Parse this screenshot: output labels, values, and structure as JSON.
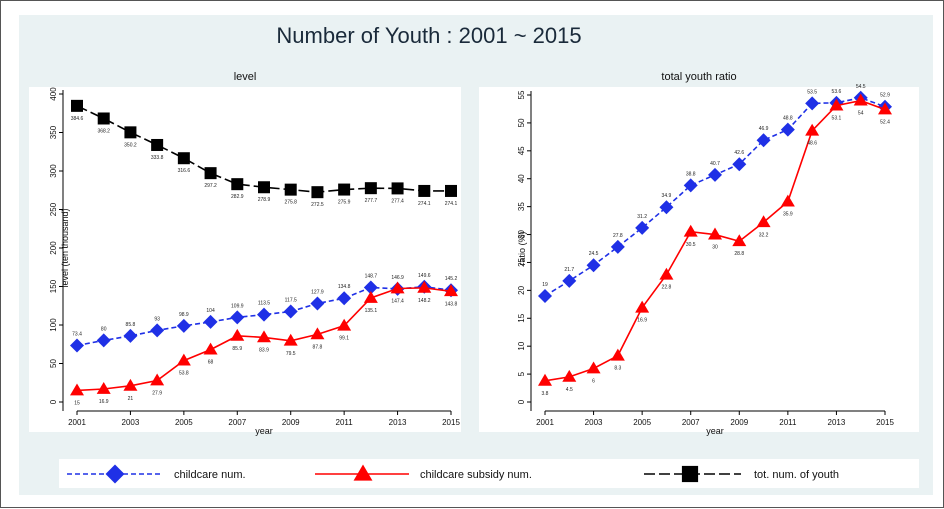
{
  "colors": {
    "childcare": "#1f30e6",
    "subsidy": "#ff0000",
    "youth": "#000000",
    "figure_bg": "#eaf2f3",
    "panel_bg": "#ffffff"
  },
  "chart_data": [
    {
      "type": "line",
      "title": "Number of Youth : 2001 ~ 2015",
      "subtitle": "level",
      "xlabel": "year",
      "ylabel": "level (ten thousand)",
      "x": [
        2001,
        2002,
        2003,
        2004,
        2005,
        2006,
        2007,
        2008,
        2009,
        2010,
        2011,
        2012,
        2013,
        2014,
        2015
      ],
      "xticks": [
        2001,
        2003,
        2005,
        2007,
        2009,
        2011,
        2013,
        2015
      ],
      "ylim": [
        0,
        400
      ],
      "yticks": [
        0,
        50,
        100,
        150,
        200,
        250,
        300,
        350,
        400
      ],
      "grid": false,
      "series": [
        {
          "name": "childcare num.",
          "marker": "diamond",
          "line": "dashed",
          "color": "#1f30e6",
          "values": [
            73.4,
            80,
            85.8,
            93,
            98.9,
            104,
            109.9,
            113.5,
            117.5,
            127.9,
            134.8,
            148.7,
            146.9,
            149.6,
            145.2
          ],
          "labels": [
            "73.4",
            "80",
            "85.8",
            "93",
            "98.9",
            "104",
            "109.9",
            "113.5",
            "117.5",
            "127.9",
            "134.8",
            "148.7",
            "146.9",
            "149.6",
            "145.2"
          ],
          "label_pos": "above"
        },
        {
          "name": "childcare subsidy num.",
          "marker": "triangle",
          "line": "solid",
          "color": "#ff0000",
          "values": [
            15,
            16.9,
            21,
            27.9,
            53.8,
            68,
            85.9,
            83.9,
            79.5,
            87.8,
            99.1,
            135.1,
            147.4,
            148.2,
            143.8
          ],
          "labels": [
            "15",
            "16.9",
            "21",
            "27.9",
            "53.8",
            "68",
            "85.9",
            "83.9",
            "79.5",
            "87.8",
            "99.1",
            "135.1",
            "147.4",
            "148.2",
            "143.8"
          ],
          "label_pos": "below"
        },
        {
          "name": "tot. num. of youth",
          "marker": "square",
          "line": "longdash",
          "color": "#000000",
          "values": [
            384.6,
            368.2,
            350.2,
            333.8,
            316.6,
            297.2,
            282.9,
            278.9,
            275.8,
            272.5,
            275.9,
            277.7,
            277.4,
            274.1,
            274.1
          ],
          "labels": [
            "384.6",
            "368.2",
            "350.2",
            "333.8",
            "316.6",
            "297.2",
            "282.9",
            "278.9",
            "275.8",
            "272.5",
            "275.9",
            "277.7",
            "277.4",
            "274.1",
            "274.1"
          ],
          "label_pos": "below"
        }
      ]
    },
    {
      "type": "line",
      "subtitle": "total youth ratio",
      "xlabel": "year",
      "ylabel": "ratio (%)",
      "x": [
        2001,
        2002,
        2003,
        2004,
        2005,
        2006,
        2007,
        2008,
        2009,
        2010,
        2011,
        2012,
        2013,
        2014,
        2015
      ],
      "xticks": [
        2001,
        2003,
        2005,
        2007,
        2009,
        2011,
        2013,
        2015
      ],
      "ylim": [
        0,
        55
      ],
      "yticks": [
        0,
        5,
        10,
        15,
        20,
        25,
        30,
        35,
        40,
        45,
        50,
        55
      ],
      "grid": false,
      "series": [
        {
          "name": "childcare num.",
          "marker": "diamond",
          "line": "dashed",
          "color": "#1f30e6",
          "values": [
            19,
            21.7,
            24.5,
            27.8,
            31.2,
            34.9,
            38.8,
            40.7,
            42.6,
            46.9,
            48.8,
            53.5,
            53.6,
            54.5,
            52.9
          ],
          "labels": [
            "19",
            "21.7",
            "24.5",
            "27.8",
            "31.2",
            "34.9",
            "38.8",
            "40.7",
            "42.6",
            "46.9",
            "48.8",
            "53.5",
            "53.6",
            "54.5",
            "52.9"
          ],
          "label_pos": "above"
        },
        {
          "name": "childcare subsidy num.",
          "marker": "triangle",
          "line": "solid",
          "color": "#ff0000",
          "values": [
            3.8,
            4.5,
            6,
            8.3,
            16.9,
            22.8,
            30.5,
            30,
            28.8,
            32.2,
            35.9,
            48.6,
            53.1,
            54,
            52.4
          ],
          "labels": [
            "3.8",
            "4.5",
            "6",
            "8.3",
            "16.9",
            "22.8",
            "30.5",
            "30",
            "28.8",
            "32.2",
            "35.9",
            "48.6",
            "53.1",
            "54",
            "52.4"
          ],
          "label_pos": "below"
        }
      ]
    }
  ],
  "legend": {
    "placement": "bottom",
    "items": [
      {
        "label": "childcare num.",
        "marker": "diamond",
        "line": "dashed",
        "color": "#1f30e6"
      },
      {
        "label": "childcare subsidy num.",
        "marker": "triangle",
        "line": "solid",
        "color": "#ff0000"
      },
      {
        "label": "tot. num. of youth",
        "marker": "square",
        "line": "longdash",
        "color": "#000000"
      }
    ]
  }
}
